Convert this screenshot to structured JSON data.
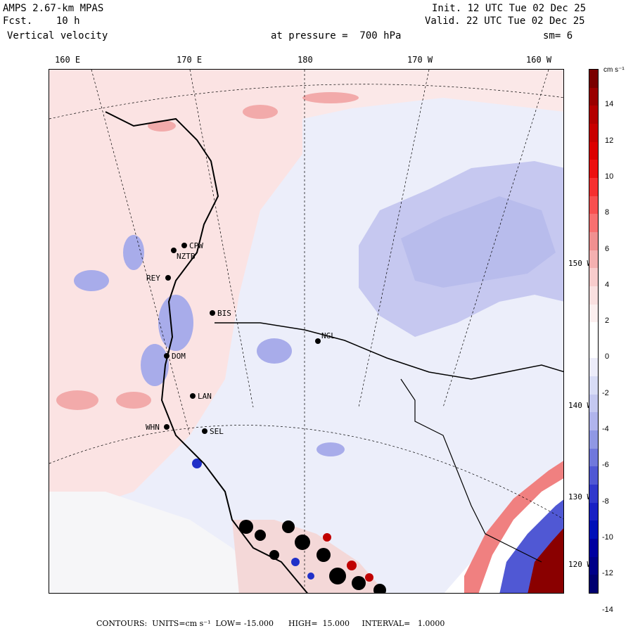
{
  "header": {
    "model": "AMPS 2.67-km MPAS",
    "fcst_label": "Fcst.",
    "fcst_value": "10 h",
    "field": "Vertical velocity",
    "init": "Init. 12 UTC Tue 02 Dec 25",
    "valid": "Valid. 22 UTC Tue 02 Dec 25",
    "level": "at pressure =  700 hPa",
    "smoothing": "sm= 6"
  },
  "longitude_labels": [
    "160 E",
    "170 E",
    "180",
    "170 W",
    "160 W"
  ],
  "latitude_labels": [
    "150 W",
    "140 W",
    "130 W",
    "120 W"
  ],
  "stations": [
    {
      "id": "CPW"
    },
    {
      "id": "NZTB"
    },
    {
      "id": "REY"
    },
    {
      "id": "BIS"
    },
    {
      "id": "NGL"
    },
    {
      "id": "DOM"
    },
    {
      "id": "LAN"
    },
    {
      "id": "WHN"
    },
    {
      "id": "SEL"
    }
  ],
  "colorbar": {
    "units": "cm s⁻¹",
    "tick_labels": [
      "14",
      "12",
      "10",
      "8",
      "6",
      "4",
      "2",
      "0",
      "-2",
      "-4",
      "-6",
      "-8",
      "-10",
      "-12",
      "-14"
    ],
    "colors": [
      "#7a0000",
      "#9a0000",
      "#b40000",
      "#c80000",
      "#dc0000",
      "#ec1010",
      "#f63030",
      "#f85050",
      "#f87070",
      "#f09090",
      "#f4b0b0",
      "#f8cccc",
      "#fae0e0",
      "#fcefef",
      "#ffffff",
      "#ffffff",
      "#ececfa",
      "#d8dcf6",
      "#c4c8f0",
      "#b0b4ec",
      "#9098e4",
      "#7078dc",
      "#5058d4",
      "#3038cc",
      "#1820c4",
      "#0010b8",
      "#0000a0",
      "#000088",
      "#000070"
    ]
  },
  "footer": {
    "text": "CONTOURS:  UNITS=cm s⁻¹  LOW= -15.000      HIGH=  15.000     INTERVAL=   1.0000"
  },
  "map": {
    "land_fill": "#ffffff",
    "ocean_fill": "#eceefa",
    "positive_color": "#f4c2c2",
    "negative_color": "#b8bcec"
  }
}
